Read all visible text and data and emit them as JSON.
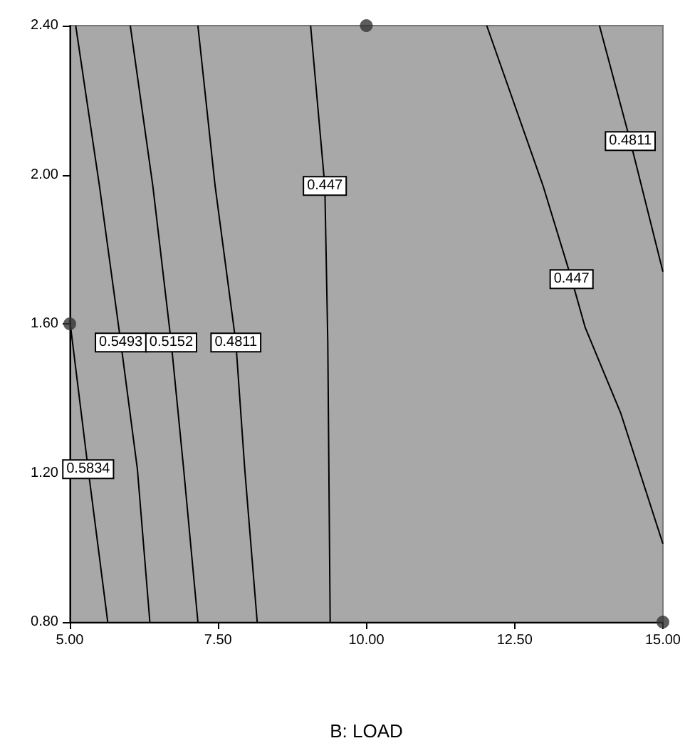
{
  "chart_data": {
    "type": "line",
    "xlabel": "B: LOAD",
    "xlim": [
      5,
      15
    ],
    "ylim": [
      0.8,
      2.4
    ],
    "xticks": [
      {
        "value": 5,
        "label": "5.00"
      },
      {
        "value": 7.5,
        "label": "7.50"
      },
      {
        "value": 10,
        "label": "10.00"
      },
      {
        "value": 12.5,
        "label": "12.50"
      },
      {
        "value": 15,
        "label": "15.00"
      }
    ],
    "yticks": [
      {
        "value": 0.8,
        "label": "0.80"
      },
      {
        "value": 1.2,
        "label": "1.20"
      },
      {
        "value": 1.6,
        "label": "1.60"
      },
      {
        "value": 2,
        "label": "2.00"
      },
      {
        "value": 2.4,
        "label": "2.40"
      }
    ],
    "grid": false,
    "legend": false,
    "marker": "none",
    "line_style": "solid",
    "series": [
      {
        "name": "0.5834",
        "color": "#000000",
        "x": [
          5.0,
          5.31,
          5.64
        ],
        "values": [
          1.61,
          1.21,
          0.8
        ]
      },
      {
        "name": "0.5493",
        "color": "#000000",
        "x": [
          5.1,
          5.5,
          5.86,
          6.14,
          6.35
        ],
        "values": [
          2.4,
          1.97,
          1.55,
          1.21,
          0.8
        ]
      },
      {
        "name": "0.5152",
        "color": "#000000",
        "x": [
          6.02,
          6.4,
          6.71,
          6.92,
          7.16
        ],
        "values": [
          2.4,
          1.97,
          1.55,
          1.21,
          0.8
        ]
      },
      {
        "name": "0.4811",
        "color": "#000000",
        "x": [
          7.16,
          7.45,
          7.8,
          7.95,
          8.16,
          null,
          13.93,
          14.45,
          15.0
        ],
        "values": [
          2.4,
          1.97,
          1.55,
          1.21,
          0.8,
          null,
          2.4,
          2.09,
          1.74
        ]
      },
      {
        "name": "0.447",
        "color": "#000000",
        "x": [
          9.06,
          9.3,
          9.35,
          9.39,
          null,
          12.03,
          12.98,
          13.46,
          13.69,
          14.29,
          15.0
        ],
        "values": [
          2.4,
          1.97,
          1.55,
          0.8,
          null,
          2.4,
          1.97,
          1.72,
          1.59,
          1.36,
          1.01
        ]
      },
      {
        "type": "scatter",
        "marker": "circle",
        "color": "#333333",
        "x": [
          10,
          5,
          15
        ],
        "values": [
          2.4,
          1.6,
          0.8
        ]
      }
    ]
  }
}
